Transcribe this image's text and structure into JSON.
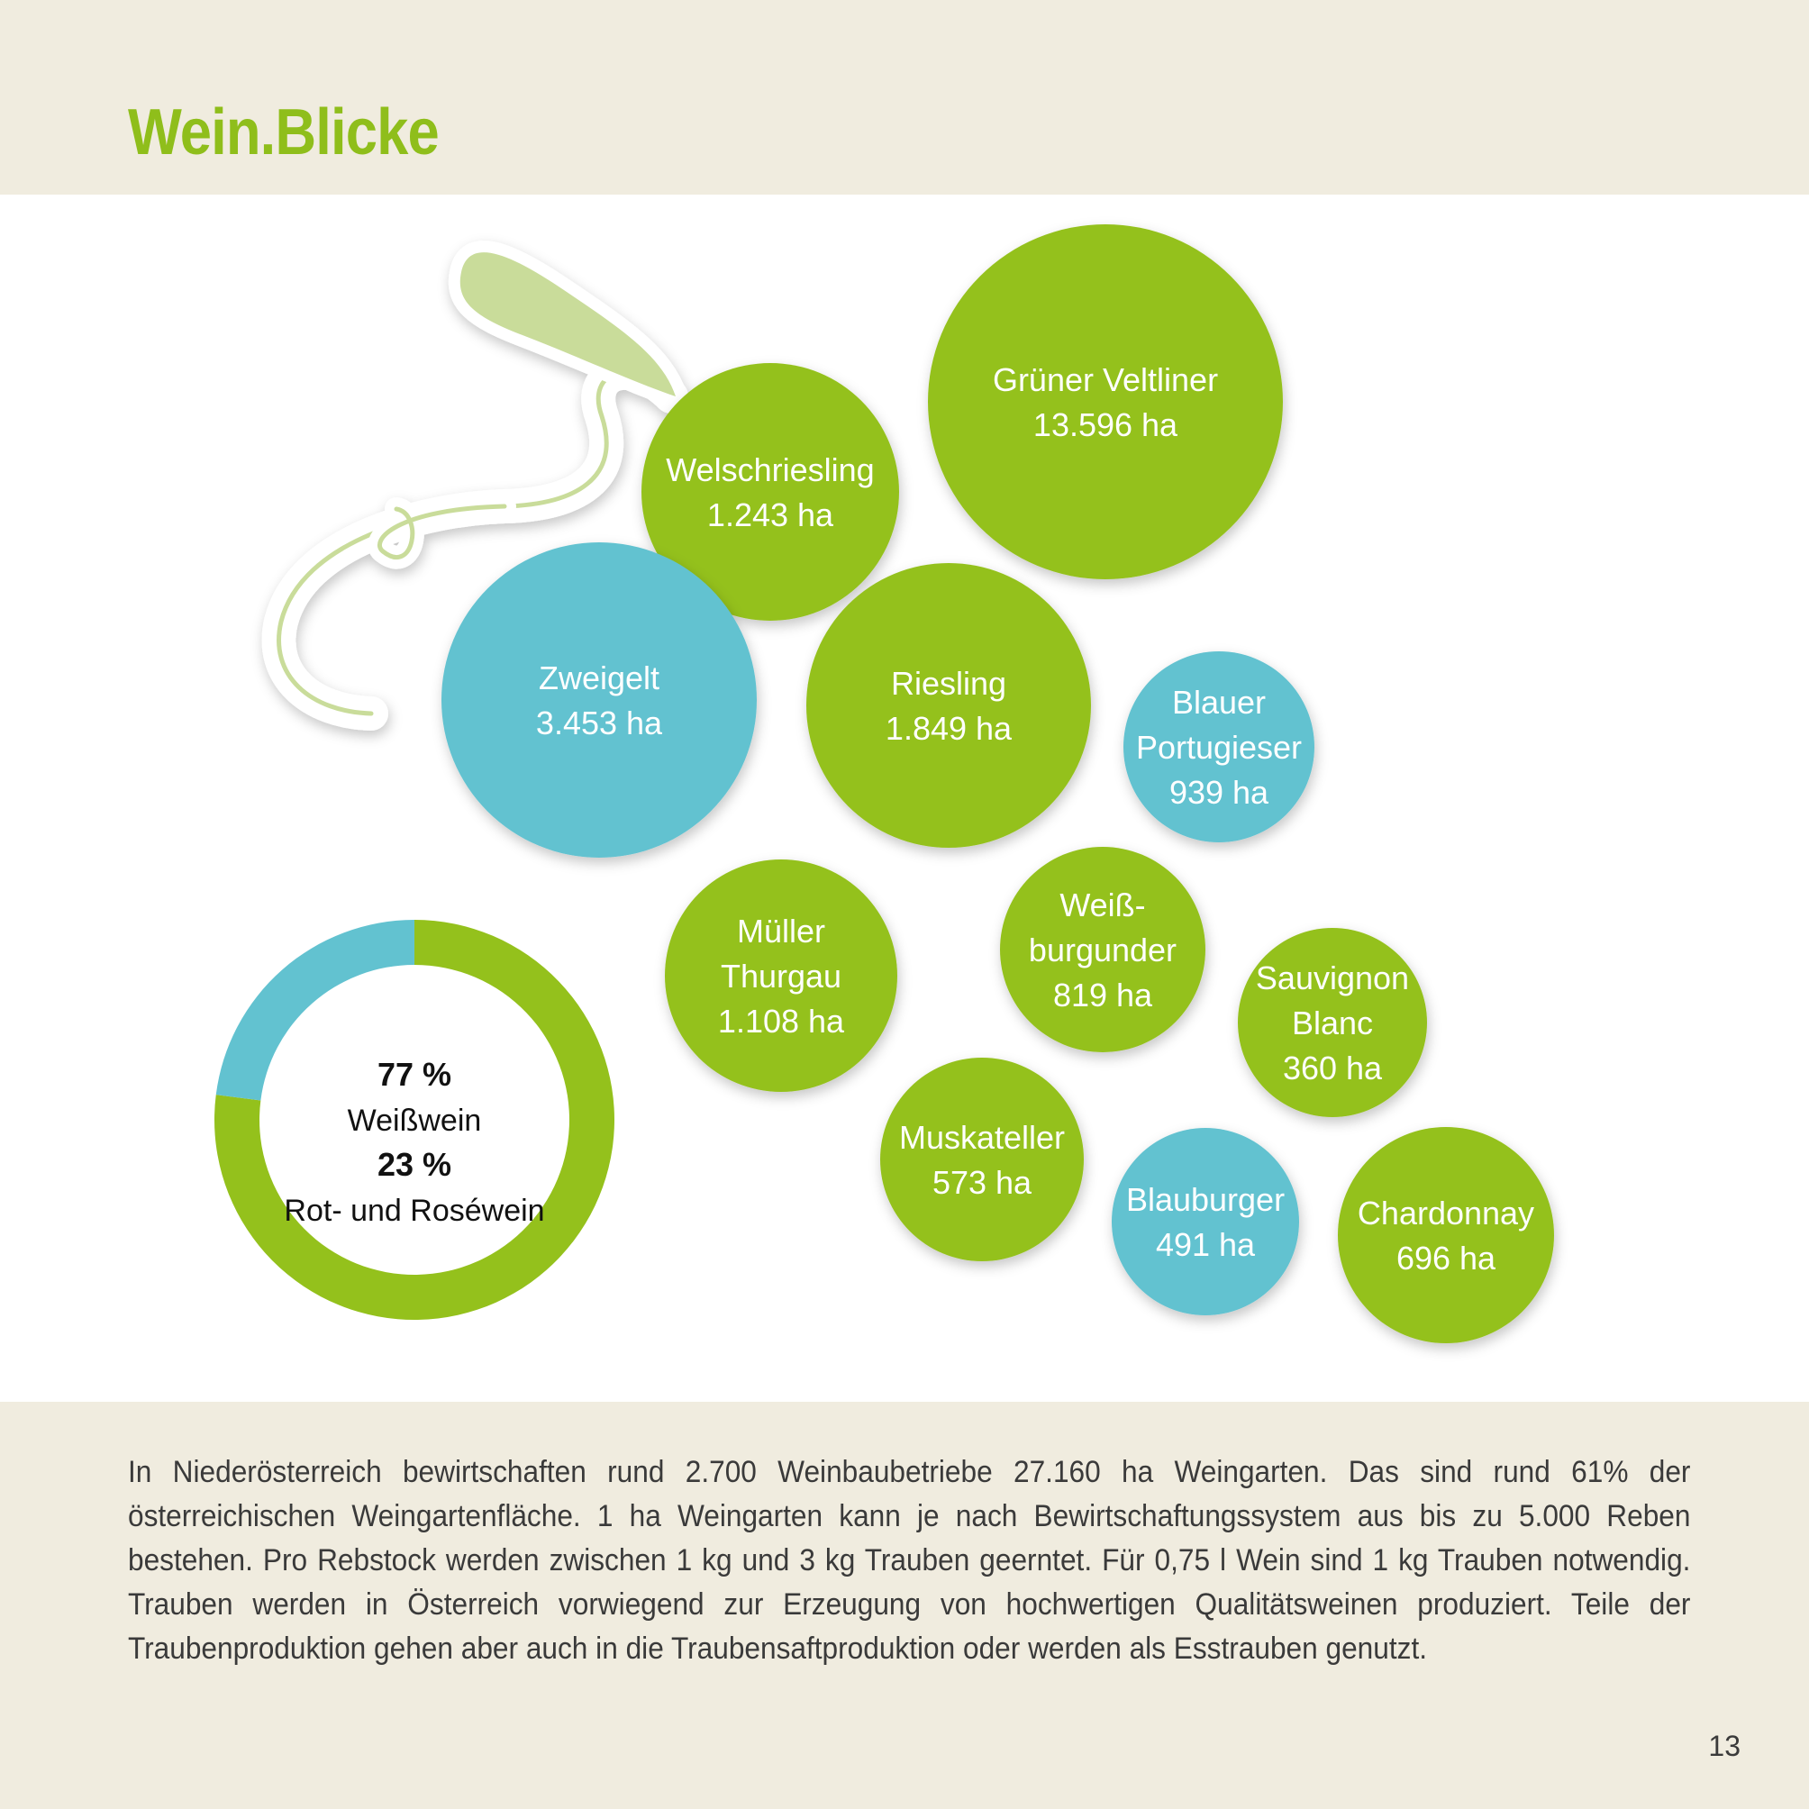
{
  "title": "Wein.Blicke",
  "colors": {
    "white_wine": "#94c11c",
    "red_wine": "#62c2d0",
    "title": "#8fbe1b",
    "band": "#f0ecdf"
  },
  "chart_data": {
    "type": "bubble",
    "unit": "ha",
    "varieties": [
      {
        "name_lines": [
          "Grüner Veltliner"
        ],
        "value_label": "13.596 ha",
        "value": 13596,
        "kind": "Weißwein"
      },
      {
        "name_lines": [
          "Welschriesling"
        ],
        "value_label": "1.243 ha",
        "value": 1243,
        "kind": "Weißwein"
      },
      {
        "name_lines": [
          "Zweigelt"
        ],
        "value_label": "3.453 ha",
        "value": 3453,
        "kind": "Rot- und Roséwein"
      },
      {
        "name_lines": [
          "Riesling"
        ],
        "value_label": "1.849 ha",
        "value": 1849,
        "kind": "Weißwein"
      },
      {
        "name_lines": [
          "Blauer",
          "Portugieser"
        ],
        "value_label": "939 ha",
        "value": 939,
        "kind": "Rot- und Roséwein"
      },
      {
        "name_lines": [
          "Müller",
          "Thurgau"
        ],
        "value_label": "1.108 ha",
        "value": 1108,
        "kind": "Weißwein"
      },
      {
        "name_lines": [
          "Weiß-",
          "burgunder"
        ],
        "value_label": "819 ha",
        "value": 819,
        "kind": "Weißwein"
      },
      {
        "name_lines": [
          "Sauvignon",
          "Blanc"
        ],
        "value_label": "360 ha",
        "value": 360,
        "kind": "Weißwein"
      },
      {
        "name_lines": [
          "Muskateller"
        ],
        "value_label": "573 ha",
        "value": 573,
        "kind": "Weißwein"
      },
      {
        "name_lines": [
          "Blauburger"
        ],
        "value_label": "491 ha",
        "value": 491,
        "kind": "Rot- und Roséwein"
      },
      {
        "name_lines": [
          "Chardonnay"
        ],
        "value_label": "696 ha",
        "value": 696,
        "kind": "Weißwein"
      }
    ],
    "donut": {
      "type": "pie",
      "slices": [
        {
          "label": "Weißwein",
          "percent_label": "77 %",
          "value": 77
        },
        {
          "label": "Rot- und Roséwein",
          "percent_label": "23 %",
          "value": 23
        }
      ]
    }
  },
  "body_text": "In Niederösterreich bewirtschaften rund 2.700 Weinbaubetriebe 27.160 ha Weingarten. Das sind rund 61% der österreichischen Weingartenfläche. 1 ha Weingarten kann je nach Bewirtschaftungssystem aus bis zu 5.000 Reben bestehen. Pro Rebstock werden zwischen 1 kg und 3 kg Trauben geerntet. Für 0,75 l Wein sind 1 kg Trauben notwendig. Trauben werden in Österreich vorwiegend zur Erzeugung von hochwertigen Qualitätsweinen produziert. Teile der Traubenproduktion gehen aber auch in die Traubensaftproduktion oder werden als Esstrauben genutzt.",
  "page_number": "13"
}
